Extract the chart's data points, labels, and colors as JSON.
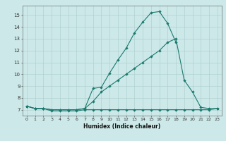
{
  "line_max": {
    "x": [
      0,
      1,
      2,
      3,
      4,
      5,
      6,
      7,
      8,
      9,
      10,
      11,
      12,
      13,
      14,
      15,
      16,
      17,
      18
    ],
    "y": [
      7.3,
      7.1,
      7.1,
      7.0,
      7.0,
      7.0,
      7.0,
      7.1,
      8.8,
      8.9,
      10.1,
      11.2,
      12.2,
      13.5,
      14.4,
      15.2,
      15.3,
      14.3,
      12.7
    ]
  },
  "line_avg": {
    "x": [
      0,
      1,
      2,
      3,
      4,
      5,
      6,
      7,
      8,
      9,
      10,
      11,
      12,
      13,
      14,
      15,
      16,
      17,
      18,
      19,
      20,
      21,
      22,
      23
    ],
    "y": [
      7.3,
      7.1,
      7.1,
      7.0,
      7.0,
      7.0,
      7.0,
      7.1,
      7.7,
      8.5,
      9.0,
      9.5,
      10.0,
      10.5,
      11.0,
      11.5,
      12.0,
      12.7,
      13.0,
      9.5,
      8.5,
      7.2,
      7.1,
      7.1
    ]
  },
  "line_min": {
    "x": [
      0,
      1,
      2,
      3,
      4,
      5,
      6,
      7,
      8,
      9,
      10,
      11,
      12,
      13,
      14,
      15,
      16,
      17,
      18,
      19,
      20,
      21,
      22,
      23
    ],
    "y": [
      7.3,
      7.1,
      7.1,
      6.9,
      6.9,
      6.9,
      6.9,
      7.0,
      7.0,
      7.0,
      7.0,
      7.0,
      7.0,
      7.0,
      7.0,
      7.0,
      7.0,
      7.0,
      7.0,
      7.0,
      7.0,
      7.0,
      7.0,
      7.1
    ]
  },
  "color": "#1a7a6e",
  "bg_color": "#cce8e8",
  "grid_color": "#aacccc",
  "xlabel": "Humidex (Indice chaleur)",
  "ylim": [
    6.5,
    15.8
  ],
  "xlim": [
    -0.5,
    23.5
  ],
  "yticks": [
    7,
    8,
    9,
    10,
    11,
    12,
    13,
    14,
    15
  ],
  "xticks": [
    0,
    1,
    2,
    3,
    4,
    5,
    6,
    7,
    8,
    9,
    10,
    11,
    12,
    13,
    14,
    15,
    16,
    17,
    18,
    19,
    20,
    21,
    22,
    23
  ],
  "xlabel_fontsize": 5.5,
  "tick_fontsize": 4.5,
  "ytick_fontsize": 5.0,
  "marker_size": 2.2,
  "linewidth": 0.8
}
